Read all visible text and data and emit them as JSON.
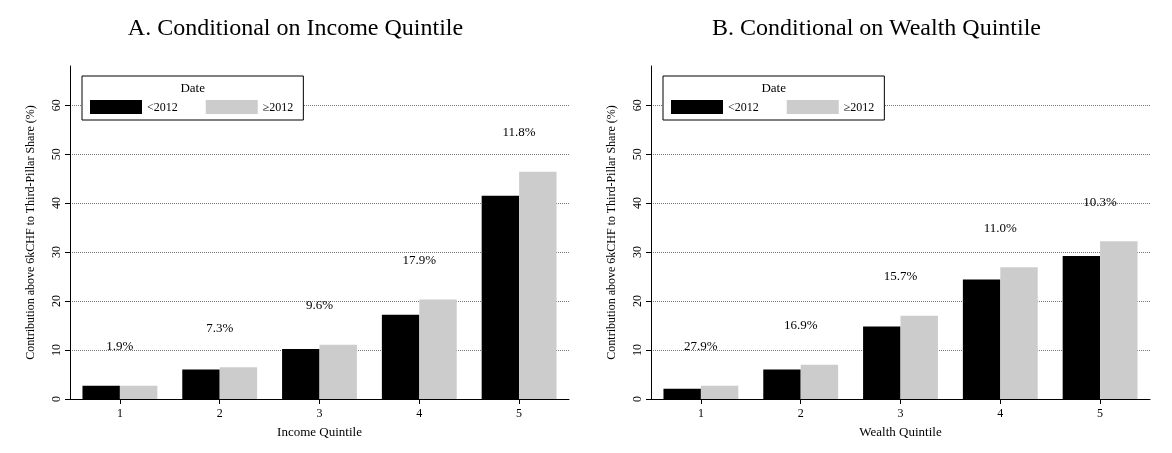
{
  "chart_data": [
    {
      "type": "bar",
      "title": "A. Conditional on Income Quintile",
      "xlabel": "Income Quintile",
      "ylabel": "Contribution above 6kCHF to Third-Pillar Share (%)",
      "legend_title": "Date",
      "categories": [
        "1",
        "2",
        "3",
        "4",
        "5"
      ],
      "series": [
        {
          "name": "<2012",
          "color": "#000000",
          "values": [
            2.7,
            6.0,
            10.2,
            17.2,
            41.5
          ]
        },
        {
          "name": "≥2012",
          "color": "#cccccc",
          "values": [
            2.7,
            6.5,
            11.1,
            20.3,
            46.4
          ]
        }
      ],
      "ylim": [
        0,
        68
      ],
      "yticks": [
        0,
        10,
        20,
        30,
        40,
        50,
        60
      ],
      "grid": "y",
      "legend": "top left",
      "annotations": [
        "1.9%",
        "7.3%",
        "9.6%",
        "17.9%",
        "11.8%"
      ]
    },
    {
      "type": "bar",
      "title": "B. Conditional on Wealth Quintile",
      "xlabel": "Wealth Quintile",
      "ylabel": "Contribution above 6kCHF to Third-Pillar Share (%)",
      "legend_title": "Date",
      "categories": [
        "1",
        "2",
        "3",
        "4",
        "5"
      ],
      "series": [
        {
          "name": "<2012",
          "color": "#000000",
          "values": [
            2.1,
            6.0,
            14.8,
            24.4,
            29.2
          ]
        },
        {
          "name": "≥2012",
          "color": "#cccccc",
          "values": [
            2.7,
            7.0,
            17.0,
            26.9,
            32.2
          ]
        }
      ],
      "ylim": [
        0,
        68
      ],
      "yticks": [
        0,
        10,
        20,
        30,
        40,
        50,
        60
      ],
      "grid": "y",
      "legend": "top left",
      "annotations": [
        "27.9%",
        "16.9%",
        "15.7%",
        "11.0%",
        "10.3%"
      ]
    }
  ]
}
